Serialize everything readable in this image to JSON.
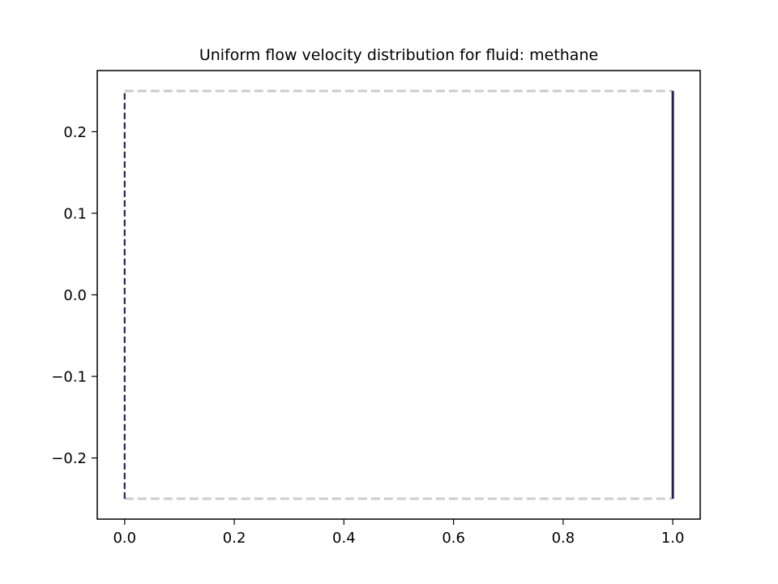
{
  "chart_data": {
    "type": "line",
    "title": "Uniform flow velocity distribution for fluid: methane",
    "xlabel": "",
    "ylabel": "",
    "xlim": [
      -0.05,
      1.05
    ],
    "ylim": [
      -0.275,
      0.275
    ],
    "xticks": [
      0.0,
      0.2,
      0.4,
      0.6,
      0.8,
      1.0
    ],
    "xtick_labels": [
      "0.0",
      "0.2",
      "0.4",
      "0.6",
      "0.8",
      "1.0"
    ],
    "yticks": [
      -0.2,
      -0.1,
      0.0,
      0.1,
      0.2
    ],
    "ytick_labels": [
      "−0.2",
      "−0.1",
      "0.0",
      "0.1",
      "0.2"
    ],
    "grid": false,
    "legend": "none",
    "series": [
      {
        "style": "dashed",
        "color": "#cccccc",
        "x": [
          0.0,
          1.0
        ],
        "y": [
          0.25,
          0.25
        ]
      },
      {
        "style": "dashed",
        "color": "#cccccc",
        "x": [
          0.0,
          1.0
        ],
        "y": [
          -0.25,
          -0.25
        ]
      },
      {
        "style": "dashed",
        "color": "#232350",
        "x": [
          0.0,
          0.0
        ],
        "y": [
          -0.25,
          0.25
        ]
      },
      {
        "style": "solid",
        "color": "#232350",
        "x": [
          1.0,
          1.0
        ],
        "y": [
          -0.25,
          0.25
        ]
      }
    ]
  }
}
